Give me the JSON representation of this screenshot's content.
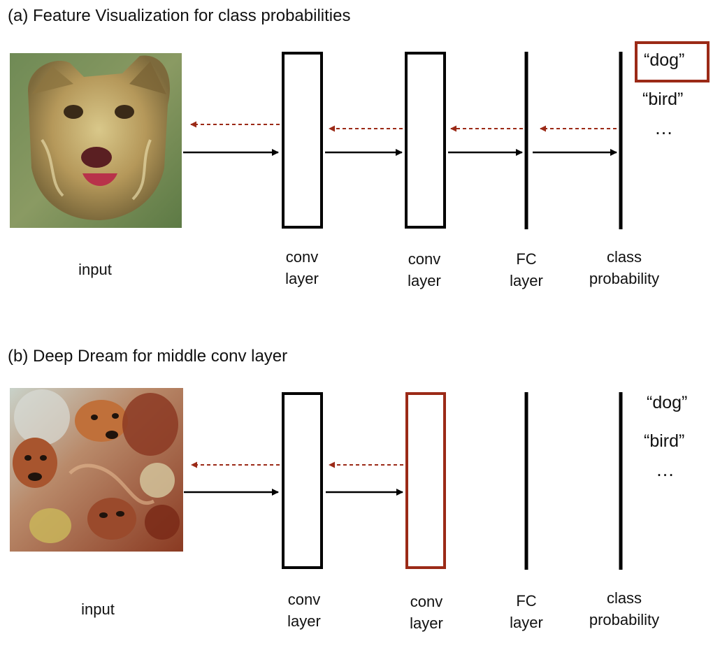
{
  "colors": {
    "highlight": "#9b2a17",
    "arrow_forward": "#000000",
    "arrow_backward": "#9b2a17",
    "stroke": "#000000"
  },
  "panels": [
    {
      "id": "a",
      "title": "(a) Feature Visualization for class probabilities",
      "input_label": "input",
      "layers": [
        {
          "line1": "conv",
          "line2": "layer"
        },
        {
          "line1": "conv",
          "line2": "layer"
        },
        {
          "line1": "FC",
          "line2": "layer"
        },
        {
          "line1": "class",
          "line2": "probability"
        }
      ],
      "classes": [
        "“dog”",
        "“bird”"
      ],
      "ellipsis": "…",
      "highlighted": "class-dog"
    },
    {
      "id": "b",
      "title": "(b) Deep Dream for middle conv layer",
      "input_label": "input",
      "layers": [
        {
          "line1": "conv",
          "line2": "layer"
        },
        {
          "line1": "conv",
          "line2": "layer"
        },
        {
          "line1": "FC",
          "line2": "layer"
        },
        {
          "line1": "class",
          "line2": "probability"
        }
      ],
      "classes": [
        "“dog”",
        "“bird”"
      ],
      "ellipsis": "…",
      "highlighted": "conv-layer-2"
    }
  ]
}
